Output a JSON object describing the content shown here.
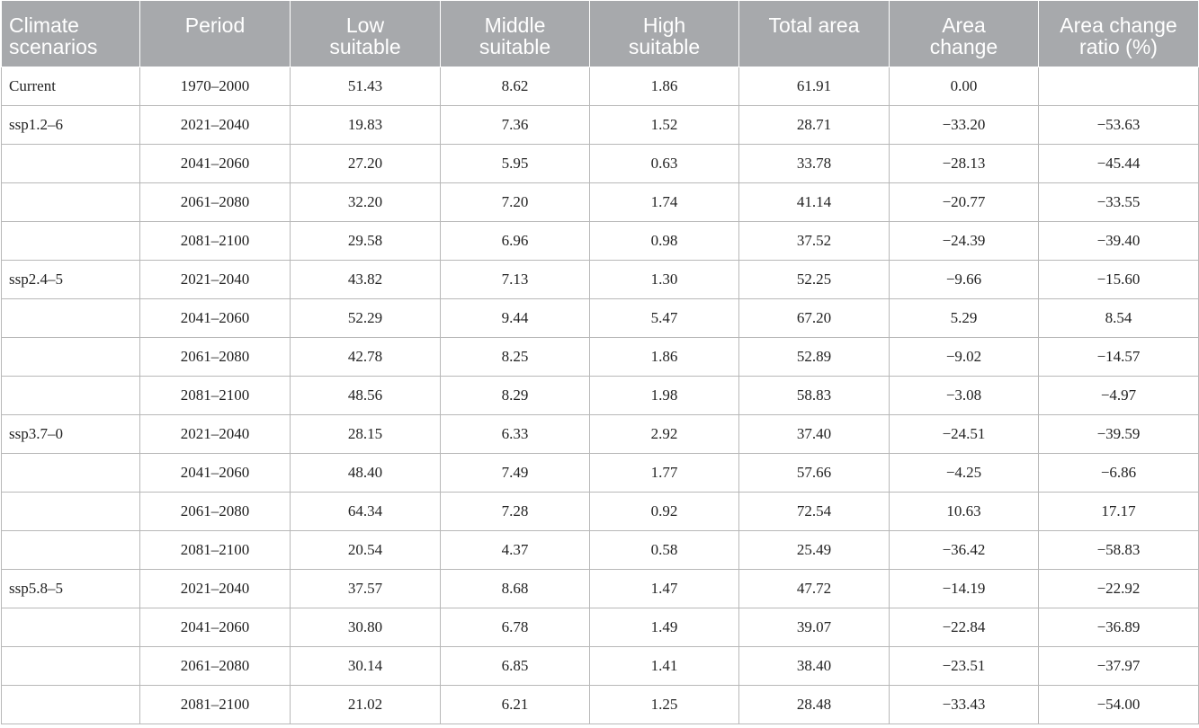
{
  "table": {
    "headers": [
      "Climate\nscenarios",
      "Period",
      "Low\nsuitable",
      "Middle\nsuitable",
      "High\nsuitable",
      "Total area",
      "Area\nchange",
      "Area change\nratio (%)"
    ],
    "rows": [
      [
        "Current",
        "1970–2000",
        "51.43",
        "8.62",
        "1.86",
        "61.91",
        "0.00",
        ""
      ],
      [
        "ssp1.2–6",
        "2021–2040",
        "19.83",
        "7.36",
        "1.52",
        "28.71",
        "−33.20",
        "−53.63"
      ],
      [
        "",
        "2041–2060",
        "27.20",
        "5.95",
        "0.63",
        "33.78",
        "−28.13",
        "−45.44"
      ],
      [
        "",
        "2061–2080",
        "32.20",
        "7.20",
        "1.74",
        "41.14",
        "−20.77",
        "−33.55"
      ],
      [
        "",
        "2081–2100",
        "29.58",
        "6.96",
        "0.98",
        "37.52",
        "−24.39",
        "−39.40"
      ],
      [
        "ssp2.4–5",
        "2021–2040",
        "43.82",
        "7.13",
        "1.30",
        "52.25",
        "−9.66",
        "−15.60"
      ],
      [
        "",
        "2041–2060",
        "52.29",
        "9.44",
        "5.47",
        "67.20",
        "5.29",
        "8.54"
      ],
      [
        "",
        "2061–2080",
        "42.78",
        "8.25",
        "1.86",
        "52.89",
        "−9.02",
        "−14.57"
      ],
      [
        "",
        "2081–2100",
        "48.56",
        "8.29",
        "1.98",
        "58.83",
        "−3.08",
        "−4.97"
      ],
      [
        "ssp3.7–0",
        "2021–2040",
        "28.15",
        "6.33",
        "2.92",
        "37.40",
        "−24.51",
        "−39.59"
      ],
      [
        "",
        "2041–2060",
        "48.40",
        "7.49",
        "1.77",
        "57.66",
        "−4.25",
        "−6.86"
      ],
      [
        "",
        "2061–2080",
        "64.34",
        "7.28",
        "0.92",
        "72.54",
        "10.63",
        "17.17"
      ],
      [
        "",
        "2081–2100",
        "20.54",
        "4.37",
        "0.58",
        "25.49",
        "−36.42",
        "−58.83"
      ],
      [
        "ssp5.8–5",
        "2021–2040",
        "37.57",
        "8.68",
        "1.47",
        "47.72",
        "−14.19",
        "−22.92"
      ],
      [
        "",
        "2041–2060",
        "30.80",
        "6.78",
        "1.49",
        "39.07",
        "−22.84",
        "−36.89"
      ],
      [
        "",
        "2061–2080",
        "30.14",
        "6.85",
        "1.41",
        "38.40",
        "−23.51",
        "−37.97"
      ],
      [
        "",
        "2081–2100",
        "21.02",
        "6.21",
        "1.25",
        "28.48",
        "−33.43",
        "−54.00"
      ]
    ]
  },
  "colors": {
    "header_background": "#a7a9ac",
    "header_text": "#ffffff",
    "grid_line": "#b8b8b8",
    "body_text": "#222222"
  }
}
